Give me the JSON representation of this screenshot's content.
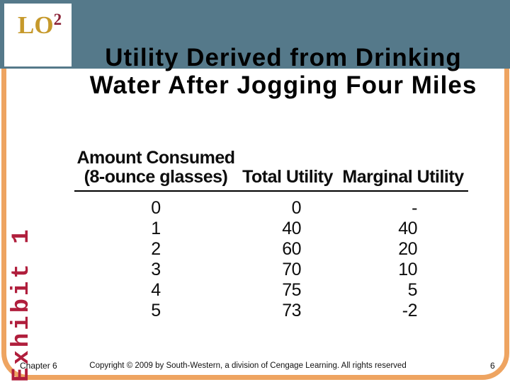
{
  "slide": {
    "lo_badge": {
      "label": "LO",
      "superscript": "2"
    },
    "title_line1": "Utility Derived from Drinking",
    "title_line2": "Water After Jogging Four Miles",
    "exhibit_label": "Exhibit 1",
    "table": {
      "headers": {
        "amount_line1": "Amount Consumed",
        "amount_line2": "(8-ounce glasses)",
        "total": "Total Utility",
        "marginal": "Marginal Utility"
      },
      "rows": [
        {
          "amount": "0",
          "total": "0",
          "marginal": "-"
        },
        {
          "amount": "1",
          "total": "40",
          "marginal": "40"
        },
        {
          "amount": "2",
          "total": "60",
          "marginal": "20"
        },
        {
          "amount": "3",
          "total": "70",
          "marginal": "10"
        },
        {
          "amount": "4",
          "total": "75",
          "marginal": "5"
        },
        {
          "amount": "5",
          "total": "73",
          "marginal": "-2"
        }
      ]
    },
    "footer": {
      "chapter": "Chapter 6",
      "copyright": "Copyright © 2009 by South-Western, a division of Cengage Learning.  All rights reserved",
      "page_number": "6"
    },
    "colors": {
      "band_teal": "#55798A",
      "frame_orange": "#EEA461",
      "lo_gold": "#C6992B",
      "lo_superscript_maroon": "#8C2337",
      "exhibit_red": "#B01E3C"
    }
  }
}
